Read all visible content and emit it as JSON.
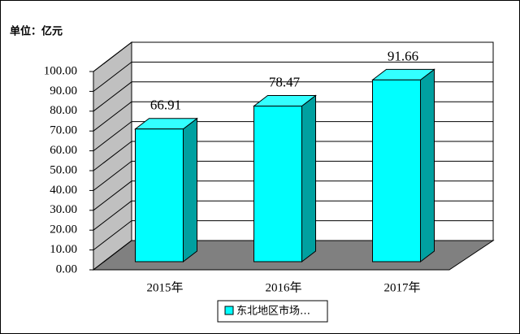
{
  "chart_data": {
    "type": "bar3d",
    "unit_label": "单位：亿元",
    "categories": [
      "2015年",
      "2016年",
      "2017年"
    ],
    "series": [
      {
        "name": "东北地区市场…",
        "color": "#00ffff",
        "values": [
          66.91,
          78.47,
          91.66
        ]
      }
    ],
    "ylim": [
      0,
      100
    ],
    "yticks": [
      {
        "value": 0,
        "label": "0.00"
      },
      {
        "value": 10,
        "label": "10.00"
      },
      {
        "value": 20,
        "label": "20.00"
      },
      {
        "value": 30,
        "label": "30.00"
      },
      {
        "value": 40,
        "label": "40.00"
      },
      {
        "value": 50,
        "label": "50.00"
      },
      {
        "value": 60,
        "label": "60.00"
      },
      {
        "value": 70,
        "label": "70.00"
      },
      {
        "value": 80,
        "label": "80.00"
      },
      {
        "value": 90,
        "label": "90.00"
      },
      {
        "value": 100,
        "label": "100.00"
      }
    ],
    "grid": true,
    "legend": "bottom"
  }
}
